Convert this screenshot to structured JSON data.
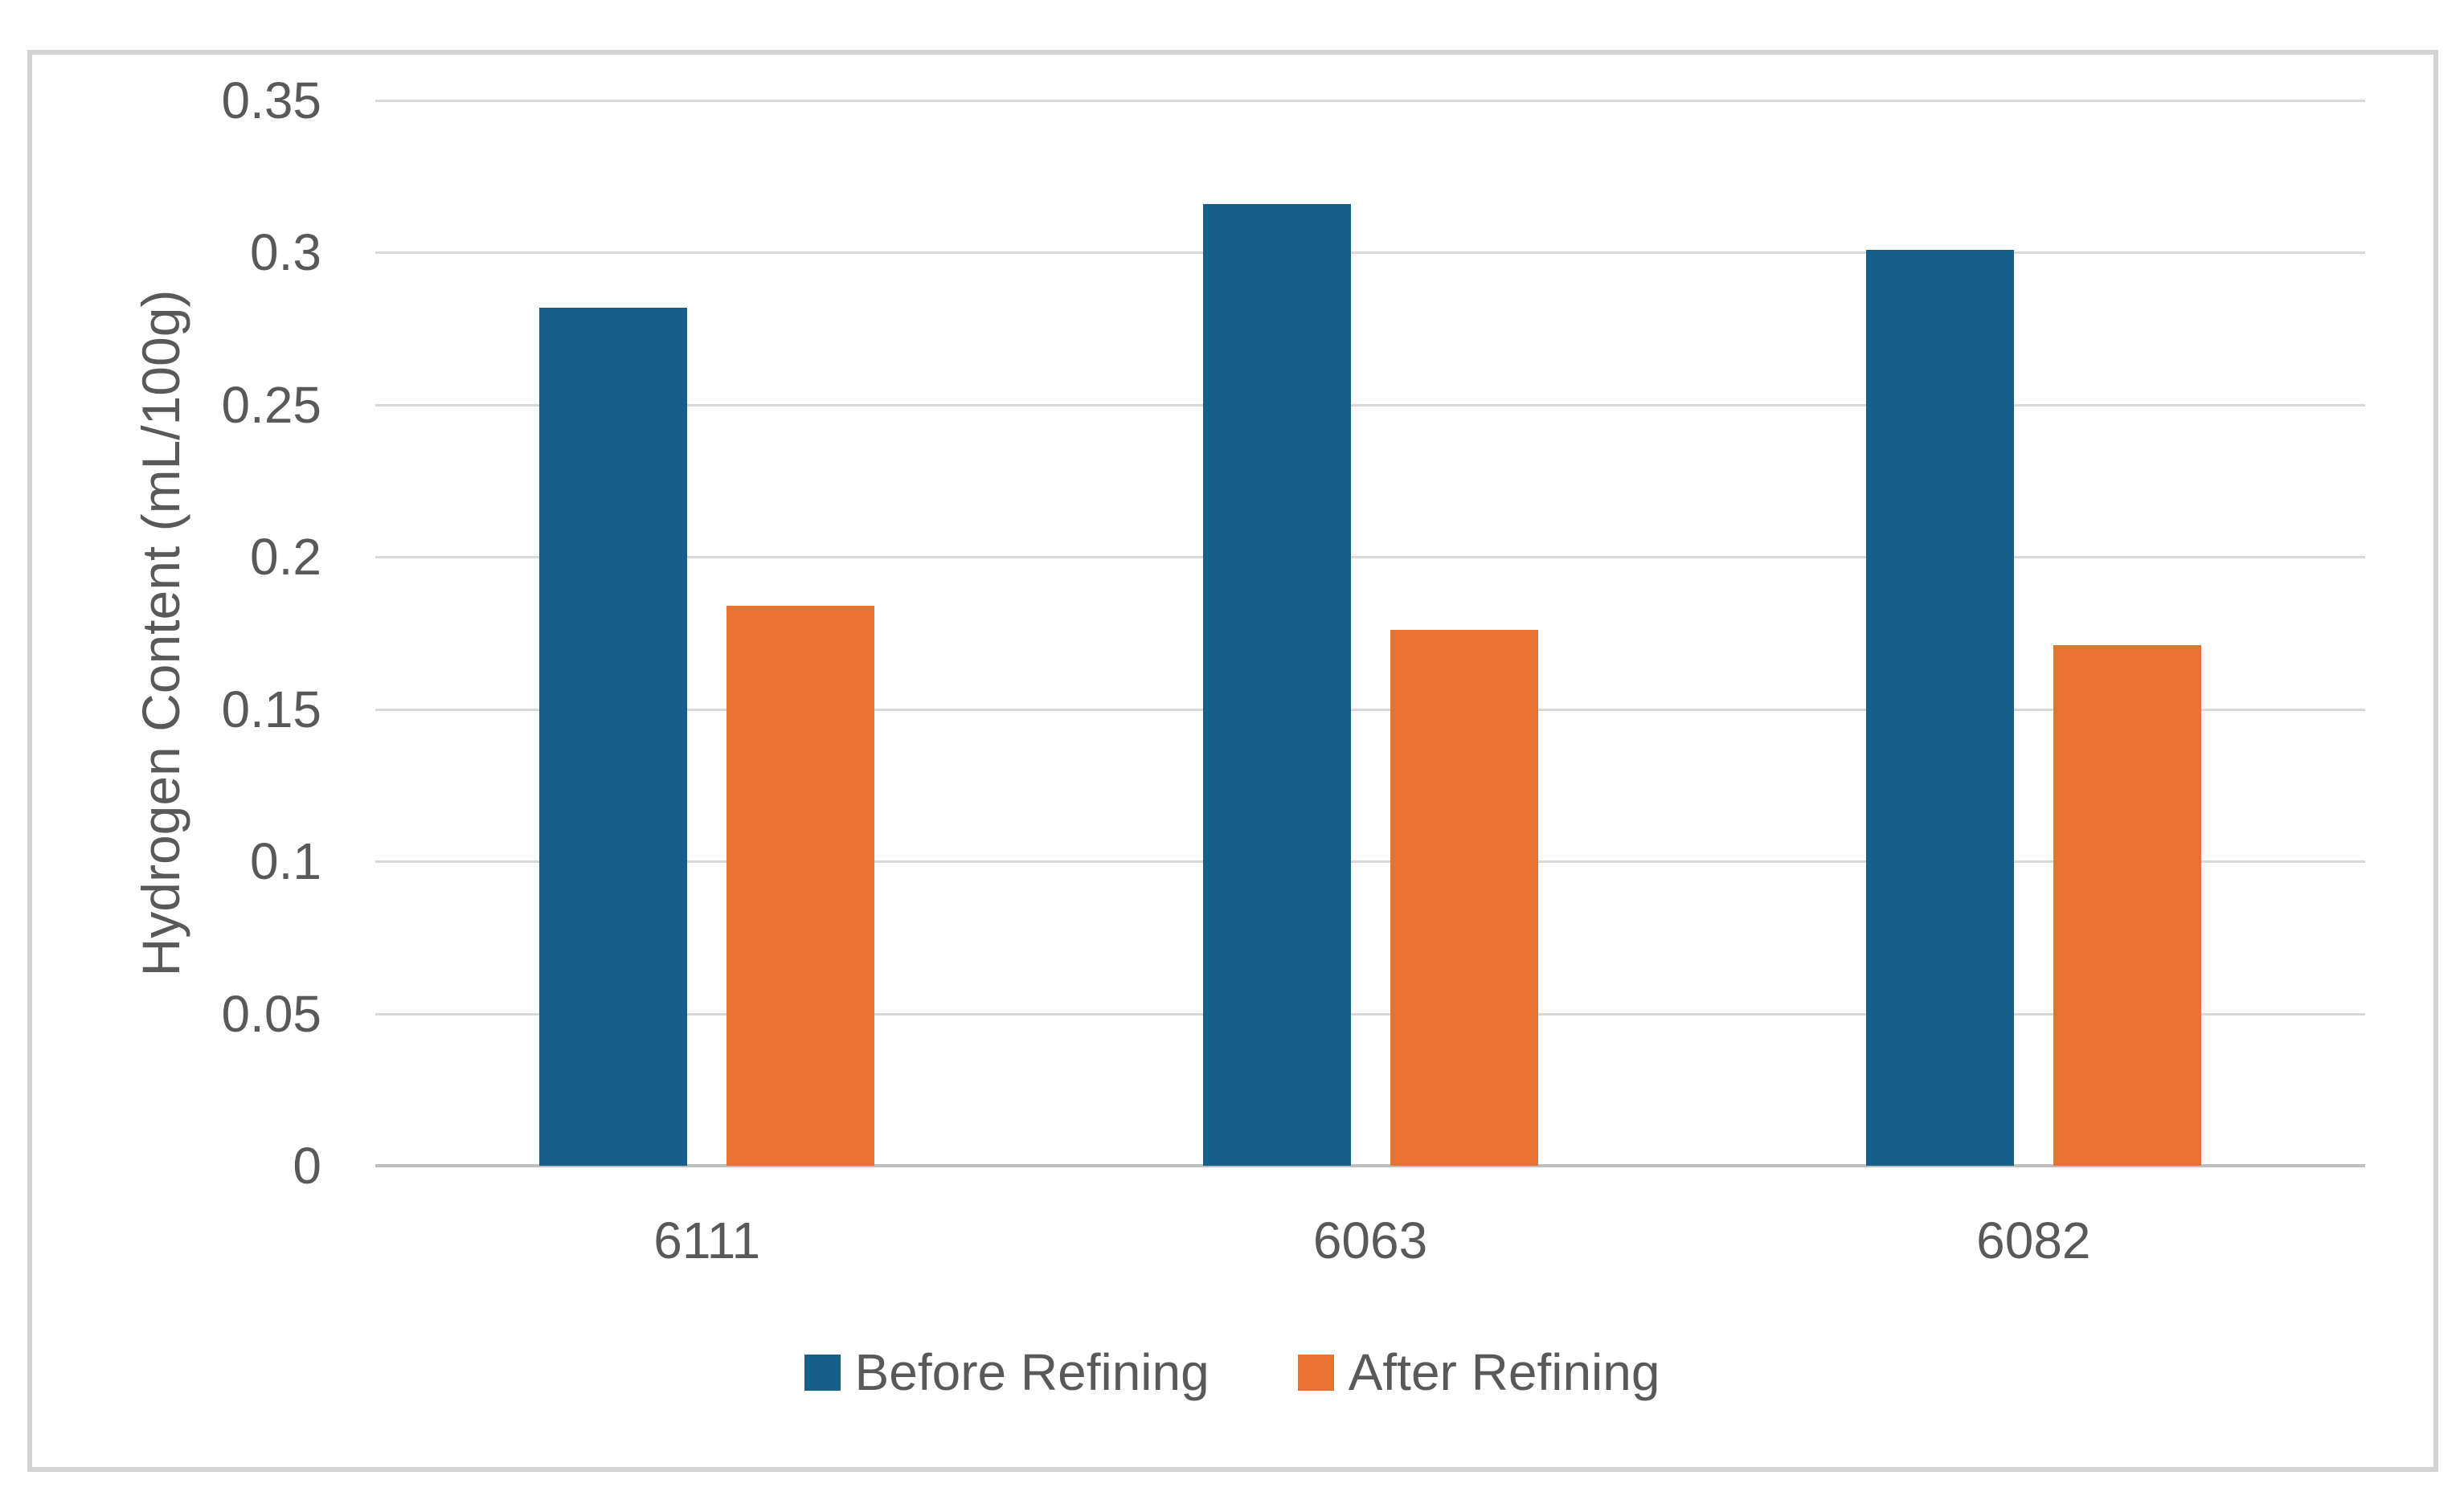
{
  "chart_data": {
    "type": "bar",
    "title": "",
    "categories": [
      "6111",
      "6063",
      "6082"
    ],
    "series": [
      {
        "name": "Before Refining",
        "color": "#165F88",
        "values": [
          0.282,
          0.316,
          0.301
        ]
      },
      {
        "name": "After Refining",
        "color": "#E87331",
        "values": [
          0.184,
          0.176,
          0.171
        ]
      }
    ],
    "xlabel": "",
    "ylabel": "Hydrogen Content (mL/100g)",
    "ylim": [
      0,
      0.35
    ],
    "yticks": [
      0,
      0.05,
      0.1,
      0.15,
      0.2,
      0.25,
      0.3,
      0.35
    ],
    "ytick_labels": [
      "0",
      "0.05",
      "0.1",
      "0.15",
      "0.2",
      "0.25",
      "0.3",
      "0.35"
    ],
    "grid": true,
    "legend_position": "bottom-center"
  },
  "colors": {
    "bar_before": "#165F88",
    "bar_after": "#E87331",
    "gridline": "#D9D9D9",
    "axis_line": "#BFBFBF",
    "text": "#595959",
    "frame_border": "#D3D3D3",
    "background": "#FFFFFF"
  }
}
